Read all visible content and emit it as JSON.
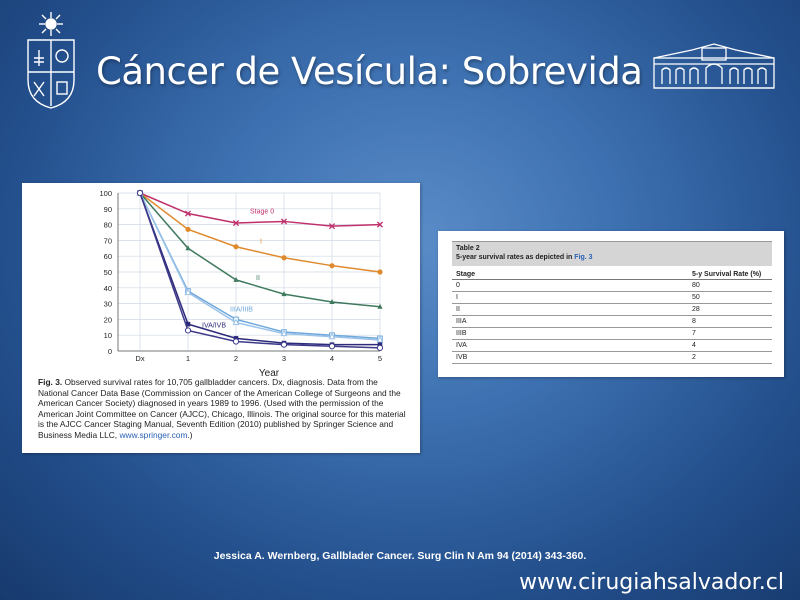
{
  "slide": {
    "title": "Cáncer de Vesícula: Sobrevida",
    "reference": "Jessica A. Wernberg, Gallblader Cancer. Surg Clin N Am 94 (2014) 343-360.",
    "website": "www.cirugiahsalvador.cl"
  },
  "colors": {
    "background": "#2f5f9e",
    "stage_0": "#c0306a",
    "stage_I": "#e08a2e",
    "stage_II": "#3f7a5e",
    "stage_IIIA_IIIB": "#6fa8dc",
    "stage_IVA_IVB": "#2d2a7a"
  },
  "figure": {
    "caption_label": "Fig. 3.",
    "caption_text": "Observed survival rates for 10,705 gallbladder cancers. Dx, diagnosis. Data from the National Cancer Data Base (Commission on Cancer of the American College of Surgeons and the American Cancer Society) diagnosed in years 1989 to 1996. (Used with the permission of the American Joint Committee on Cancer (AJCC), Chicago, Illinois. The original source for this material is the AJCC Cancer Staging Manual, Seventh Edition (2010) published by Springer Science and Business Media LLC,",
    "caption_link": "www.springer.com",
    "caption_end": ".)"
  },
  "chart_data": {
    "type": "line",
    "xlabel": "Year",
    "ylabel": "",
    "categories": [
      "Dx",
      "1",
      "2",
      "3",
      "4",
      "5"
    ],
    "ylim": [
      0,
      100
    ],
    "yticks": [
      0,
      10,
      20,
      30,
      40,
      50,
      60,
      70,
      80,
      90,
      100
    ],
    "grid": true,
    "series": [
      {
        "name": "Stage 0",
        "color": "#c0306a",
        "marker": "x",
        "values": [
          100,
          87,
          81,
          82,
          79,
          80
        ]
      },
      {
        "name": "I",
        "color": "#e08a2e",
        "marker": "circle-filled",
        "values": [
          100,
          77,
          66,
          59,
          54,
          50
        ]
      },
      {
        "name": "II",
        "color": "#3f7a5e",
        "marker": "triangle",
        "values": [
          100,
          65,
          45,
          36,
          31,
          28
        ]
      },
      {
        "name": "IIIA/IIIB",
        "color": "#6fa8dc",
        "marker": "square-open",
        "values": [
          100,
          38,
          20,
          12,
          10,
          8
        ]
      },
      {
        "name": "",
        "color": "#9cc3e8",
        "marker": "triangle-open",
        "values": [
          100,
          37,
          18,
          11,
          9,
          7
        ]
      },
      {
        "name": "IVA/IVB",
        "color": "#2d2a7a",
        "marker": "square-filled",
        "values": [
          100,
          17,
          8,
          5,
          4,
          4
        ]
      },
      {
        "name": "",
        "color": "#3d3a8a",
        "marker": "circle-open",
        "values": [
          100,
          13,
          6,
          4,
          3,
          2
        ]
      }
    ]
  },
  "table": {
    "title": "Table 2",
    "subtitle_prefix": "5-year survival rates as depicted in ",
    "subtitle_link": "Fig. 3",
    "headers": [
      "Stage",
      "5-y Survival Rate (%)"
    ],
    "rows": [
      [
        "0",
        "80"
      ],
      [
        "I",
        "50"
      ],
      [
        "II",
        "28"
      ],
      [
        "IIIA",
        "8"
      ],
      [
        "IIIB",
        "7"
      ],
      [
        "IVA",
        "4"
      ],
      [
        "IVB",
        "2"
      ]
    ]
  },
  "logos": {
    "left": "university-crest-icon",
    "right": "hospital-building-icon"
  }
}
